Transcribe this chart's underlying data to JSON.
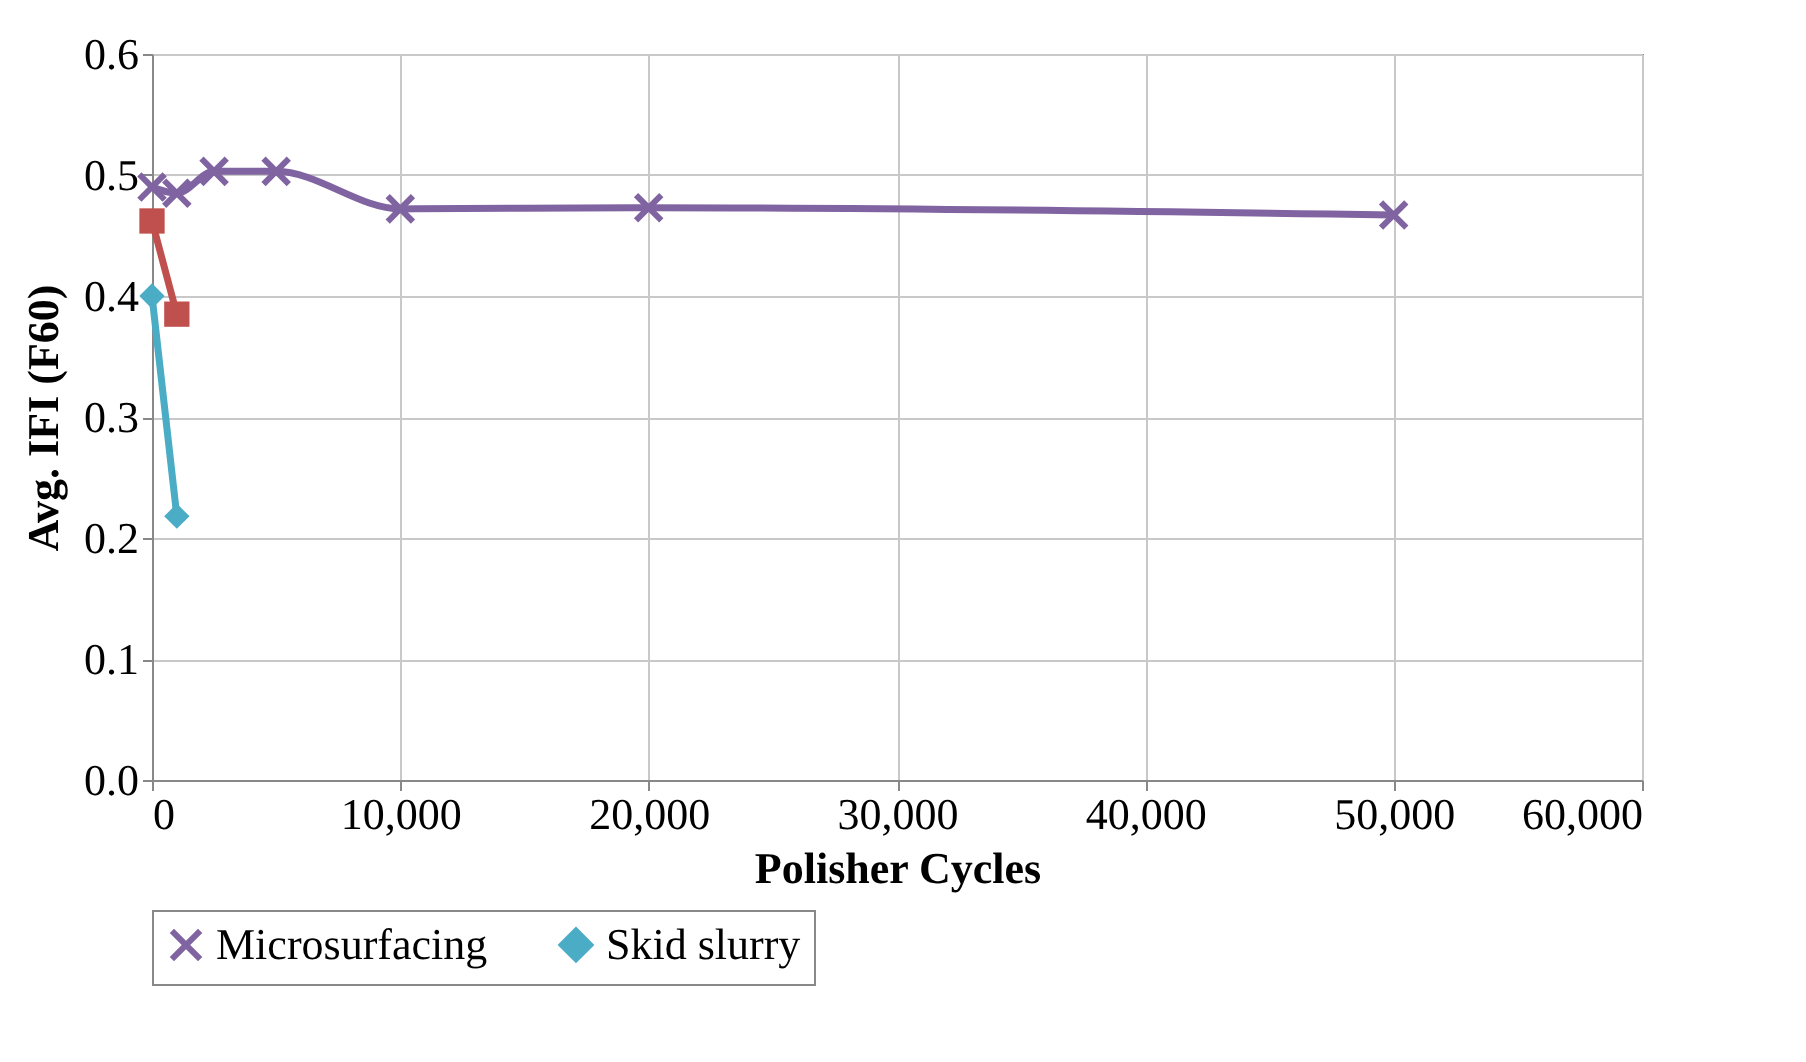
{
  "chart_data": {
    "type": "line",
    "xlabel": "Polisher Cycles",
    "ylabel": "Avg. IFI (F60)",
    "xlim": [
      0,
      60000
    ],
    "xticks": [
      {
        "value": 0,
        "label": "0"
      },
      {
        "value": 10000,
        "label": "10,000"
      },
      {
        "value": 20000,
        "label": "20,000"
      },
      {
        "value": 30000,
        "label": "30,000"
      },
      {
        "value": 40000,
        "label": "40,000"
      },
      {
        "value": 50000,
        "label": "50,000"
      },
      {
        "value": 60000,
        "label": "60,000"
      }
    ],
    "ylim": [
      0,
      0.6
    ],
    "yticks": [
      {
        "value": 0,
        "label": "0.0"
      },
      {
        "value": 0.1,
        "label": "0.1"
      },
      {
        "value": 0.2,
        "label": "0.2"
      },
      {
        "value": 0.3,
        "label": "0.3"
      },
      {
        "value": 0.4,
        "label": "0.4"
      },
      {
        "value": 0.5,
        "label": "0.5"
      },
      {
        "value": 0.6,
        "label": "0.6"
      }
    ],
    "grid": true,
    "legend": "bottom",
    "series": [
      {
        "name": "Microsurfacing",
        "color": "#8064a2",
        "marker": "cross",
        "x": [
          0,
          1000,
          2500,
          5000,
          10000,
          20000,
          50000
        ],
        "values": [
          0.49,
          0.485,
          0.503,
          0.503,
          0.472,
          0.473,
          0.467
        ]
      },
      {
        "color": "#c0504d",
        "marker": "square",
        "x": [
          0,
          1000
        ],
        "values": [
          0.462,
          0.385
        ]
      },
      {
        "name": "Skid slurry",
        "color": "#4bacc6",
        "marker": "diamond",
        "x": [
          0,
          1000
        ],
        "values": [
          0.4,
          0.218
        ]
      }
    ]
  }
}
